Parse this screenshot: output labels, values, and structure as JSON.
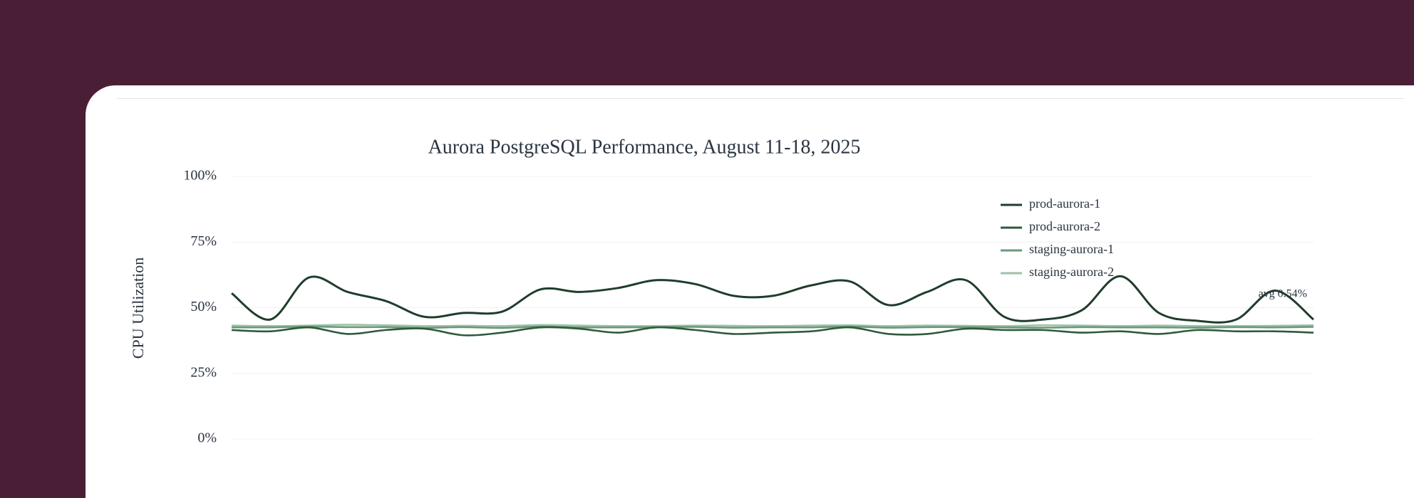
{
  "chart_data": {
    "type": "line",
    "title": "Aurora PostgreSQL Performance, August 11-18, 2025",
    "y_label": "CPU Utilization",
    "ylim": [
      0,
      100
    ],
    "yticks": [
      {
        "value": 0,
        "label": "0%"
      },
      {
        "value": 25,
        "label": "25%"
      },
      {
        "value": 50,
        "label": "50%"
      },
      {
        "value": 75,
        "label": "75%"
      },
      {
        "value": 100,
        "label": "100%"
      }
    ],
    "grid": true,
    "legend": "top-right",
    "series": [
      {
        "name": "prod-aurora-1",
        "color": "#1f3d2b",
        "values": [
          55.5,
          45.5,
          61.5,
          56,
          52.5,
          46.5,
          48,
          48.5,
          57,
          56,
          57.5,
          60.5,
          59,
          54.5,
          54.5,
          58.5,
          60,
          51,
          56,
          60.5,
          46.5,
          45.5,
          49,
          62,
          48,
          45,
          45.5,
          56.5,
          45.5
        ]
      },
      {
        "name": "prod-aurora-2",
        "color": "#2f5a3c",
        "values": [
          41.5,
          41,
          42.5,
          40,
          41.5,
          42,
          39.5,
          40.5,
          42.5,
          42,
          40.5,
          42.5,
          41.5,
          40,
          40.5,
          41,
          42.5,
          40,
          40,
          42,
          41.5,
          41.5,
          40.5,
          41,
          40,
          41.5,
          41,
          41,
          40.5
        ]
      },
      {
        "name": "staging-aurora-1",
        "color": "#6b9a78",
        "values": [
          42.5,
          42.5,
          42.8,
          42.6,
          42.6,
          42.3,
          42.6,
          42.3,
          42.8,
          42.5,
          42.5,
          42.6,
          42.7,
          42.4,
          42.5,
          42.5,
          42.8,
          42.4,
          42.6,
          42.6,
          42.5,
          42.4,
          42.6,
          42.5,
          42.5,
          42.4,
          42.6,
          42.5,
          42.7
        ]
      },
      {
        "name": "staging-aurora-2",
        "color": "#9dc1a9",
        "values": [
          43.2,
          43,
          43.2,
          43.5,
          43.3,
          43,
          43.1,
          43,
          43.4,
          43.2,
          43,
          43,
          43.2,
          43.1,
          43,
          43.2,
          43.3,
          43,
          43.2,
          43.1,
          43,
          43.3,
          43.2,
          43,
          43.2,
          43,
          43,
          43.1,
          43.3
        ]
      }
    ],
    "annotations": [
      {
        "text": "avg 0.54%"
      }
    ]
  }
}
